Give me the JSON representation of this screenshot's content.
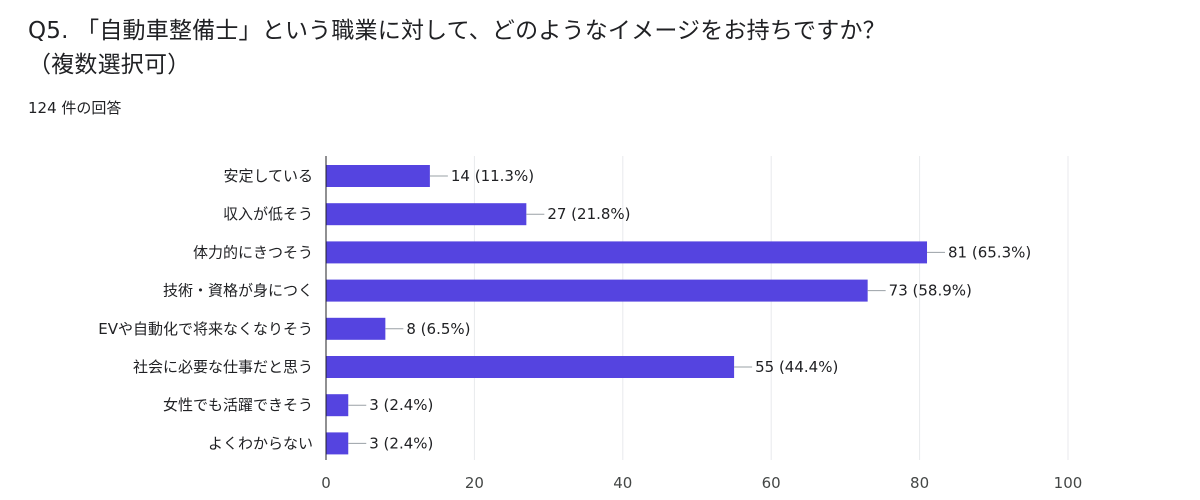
{
  "question": {
    "title": "Q5. 「自動車整備士」という職業に対して、どのようなイメージをお持ちですか？（複数選択可）",
    "response_count": "124 件の回答"
  },
  "colors": {
    "bar": "#5544e0",
    "grid": "#e8eaed",
    "axis": "#202124",
    "leader": "#9aa0a6"
  },
  "chart_data": {
    "type": "bar",
    "orientation": "horizontal",
    "categories": [
      "安定している",
      "収入が低そう",
      "体力的にきつそう",
      "技術・資格が身につく",
      "EVや自動化で将来なくなりそう",
      "社会に必要な仕事だと思う",
      "女性でも活躍できそう",
      "よくわからない"
    ],
    "values": [
      14,
      27,
      81,
      73,
      8,
      55,
      3,
      3
    ],
    "value_labels": [
      "14 (11.3%)",
      "27 (21.8%)",
      "81 (65.3%)",
      "73 (58.9%)",
      "8 (6.5%)",
      "55 (44.4%)",
      "3 (2.4%)",
      "3 (2.4%)"
    ],
    "xlim": [
      0,
      100
    ],
    "xticks": [
      "0",
      "20",
      "40",
      "60",
      "80",
      "100"
    ],
    "grid": true,
    "legend": "none"
  }
}
